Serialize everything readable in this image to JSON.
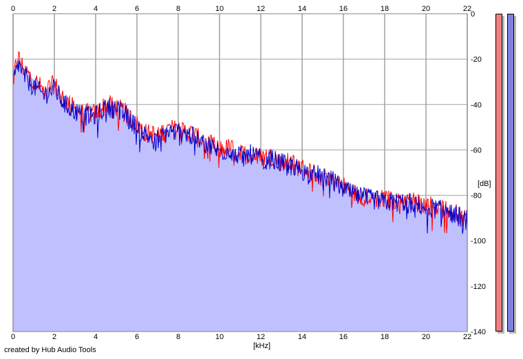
{
  "chart_data": {
    "type": "area",
    "title": "",
    "xlabel": "[kHz]",
    "ylabel": "[dB]",
    "xlim": [
      0,
      22
    ],
    "ylim": [
      -140,
      0
    ],
    "x_ticks": [
      0,
      2,
      4,
      6,
      8,
      10,
      12,
      14,
      16,
      18,
      20,
      22
    ],
    "y_ticks": [
      0,
      -20,
      -40,
      -60,
      -80,
      -100,
      -120,
      -140
    ],
    "grid": true,
    "fill_color": "#c0c0ff",
    "series": [
      {
        "color": "#ff0000",
        "x": [
          0,
          0.25,
          0.5,
          0.75,
          1,
          1.5,
          2,
          2.5,
          3,
          3.5,
          4,
          4.5,
          5,
          5.5,
          6,
          6.5,
          7,
          7.5,
          8,
          8.5,
          9,
          9.5,
          10,
          10.5,
          11,
          11.5,
          12,
          12.5,
          13,
          13.5,
          14,
          14.5,
          15,
          15.5,
          16,
          16.5,
          17,
          17.5,
          18,
          18.5,
          19,
          19.5,
          20,
          20.5,
          21,
          21.5,
          22
        ],
        "values": [
          -28,
          -19,
          -24,
          -27,
          -29,
          -34,
          -31,
          -38,
          -42,
          -44,
          -44,
          -40,
          -41,
          -44,
          -49,
          -53,
          -53,
          -51,
          -51,
          -52,
          -55,
          -57,
          -60,
          -59,
          -62,
          -62,
          -63,
          -63,
          -65,
          -66,
          -68,
          -70,
          -70,
          -73,
          -76,
          -79,
          -80,
          -81,
          -82,
          -82,
          -82,
          -83,
          -84,
          -85,
          -87,
          -88,
          -92
        ]
      },
      {
        "color": "#0000cc",
        "x": [
          0,
          0.25,
          0.5,
          0.75,
          1,
          1.5,
          2,
          2.5,
          3,
          3.5,
          4,
          4.5,
          5,
          5.5,
          6,
          6.5,
          7,
          7.5,
          8,
          8.5,
          9,
          9.5,
          10,
          10.5,
          11,
          11.5,
          12,
          12.5,
          13,
          13.5,
          14,
          14.5,
          15,
          15.5,
          16,
          16.5,
          17,
          17.5,
          18,
          18.5,
          19,
          19.5,
          20,
          20.5,
          21,
          21.5,
          22
        ],
        "values": [
          -30,
          -22,
          -27,
          -30,
          -32,
          -36,
          -33,
          -40,
          -43,
          -45,
          -45,
          -41,
          -42,
          -45,
          -50,
          -54,
          -55,
          -52,
          -52,
          -53,
          -56,
          -58,
          -61,
          -60,
          -63,
          -62,
          -64,
          -64,
          -66,
          -67,
          -69,
          -71,
          -71,
          -74,
          -77,
          -80,
          -81,
          -82,
          -83,
          -83,
          -83,
          -84,
          -85,
          -86,
          -87,
          -89,
          -91
        ]
      }
    ]
  },
  "meters": [
    {
      "color": "#f08080"
    },
    {
      "color": "#8080e0"
    }
  ],
  "credit": "created by Hub Audio Tools"
}
